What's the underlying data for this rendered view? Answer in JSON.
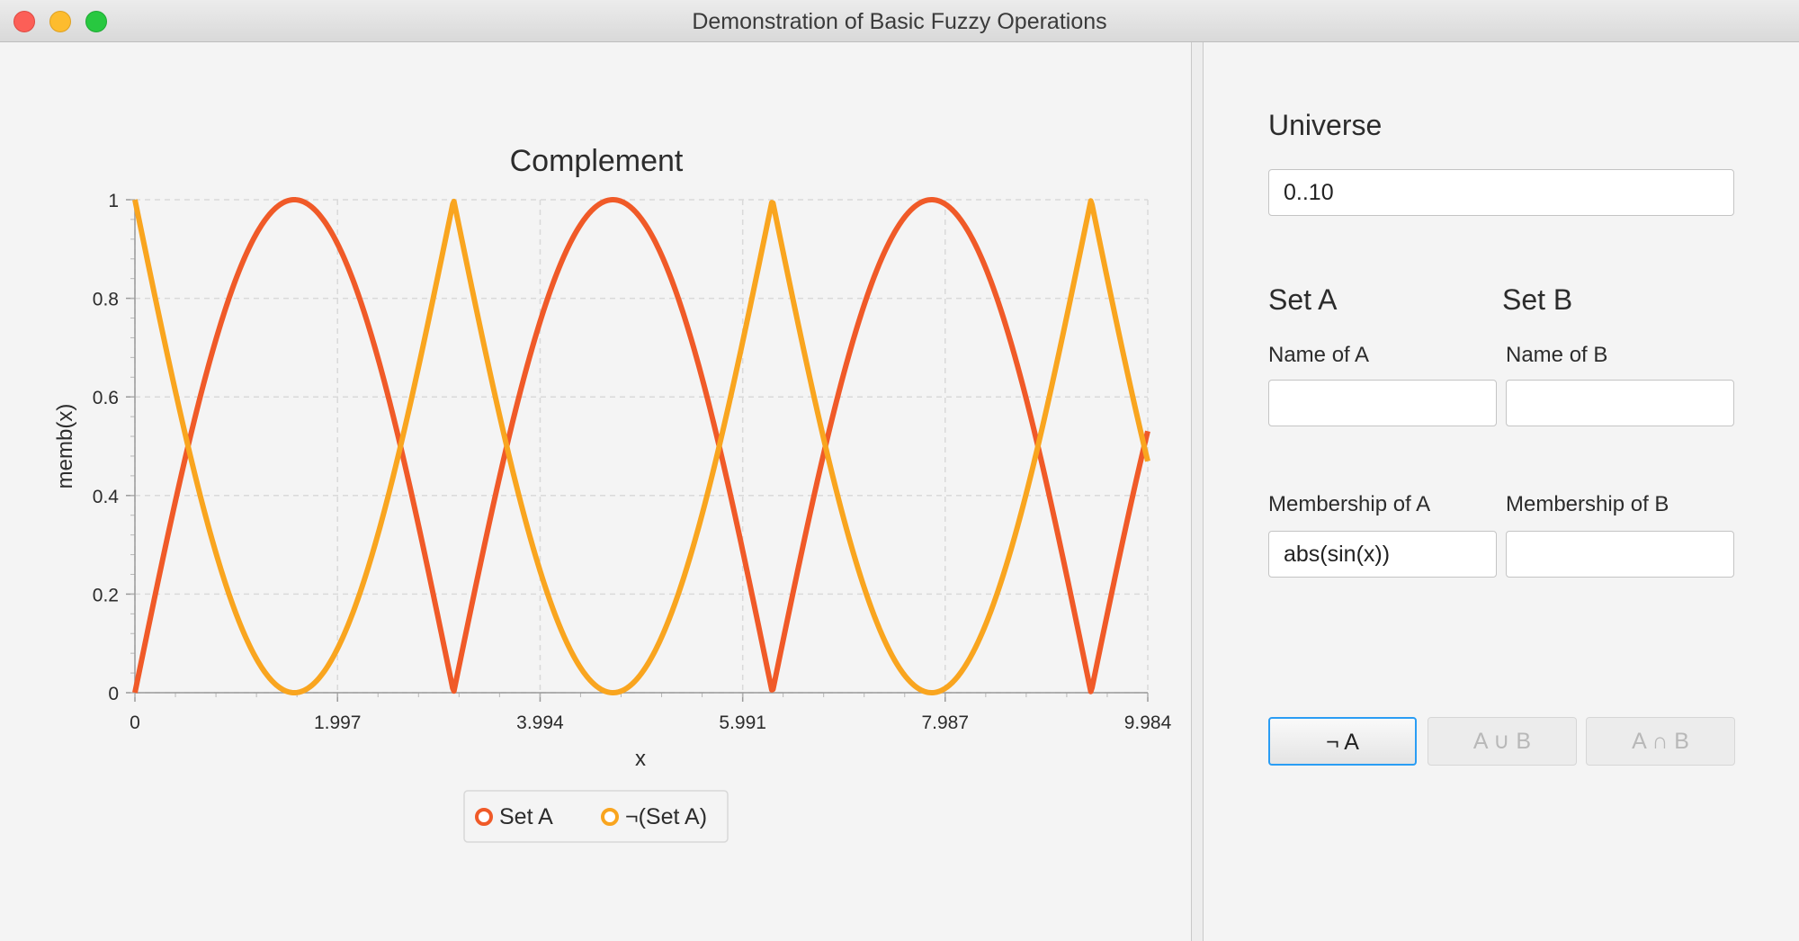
{
  "window": {
    "title": "Demonstration of Basic Fuzzy Operations"
  },
  "chart_data": {
    "type": "line",
    "title": "Complement",
    "xlabel": "x",
    "ylabel": "memb(x)",
    "xlim": [
      0,
      9.984
    ],
    "ylim": [
      0,
      1
    ],
    "x_ticks": [
      "0",
      "1.997",
      "3.994",
      "5.991",
      "7.987",
      "9.984"
    ],
    "y_ticks": [
      "0",
      "0.2",
      "0.4",
      "0.6",
      "0.8",
      "1"
    ],
    "grid": true,
    "legend_position": "bottom",
    "series": [
      {
        "name": "Set A",
        "function": "abs(sin(x))",
        "color": "#f05a28"
      },
      {
        "name": "¬(Set A)",
        "function": "1 - abs(sin(x))",
        "color": "#f9a51f"
      }
    ]
  },
  "form": {
    "universe_heading": "Universe",
    "universe_value": "0..10",
    "set_a_heading": "Set A",
    "set_b_heading": "Set B",
    "name_a_label": "Name of A",
    "name_a_value": "",
    "name_b_label": "Name of B",
    "name_b_value": "",
    "membership_a_label": "Membership of A",
    "membership_a_value": "abs(sin(x))",
    "membership_b_label": "Membership of B",
    "membership_b_value": ""
  },
  "buttons": {
    "complement": "¬ A",
    "union": "A ∪ B",
    "intersection": "A ∩ B"
  }
}
